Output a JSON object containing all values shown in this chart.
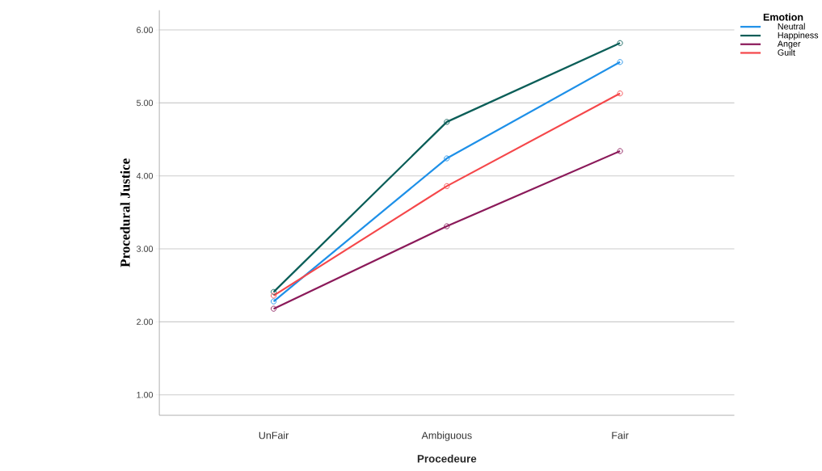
{
  "chart_data": {
    "type": "line",
    "xlabel": "Procedeure",
    "ylabel": "Procedural Justice",
    "legend_title": "Emotion",
    "categories": [
      "UnFair",
      "Ambiguous",
      "Fair"
    ],
    "series": [
      {
        "name": "Neutral",
        "color": "#1e90e8",
        "values": [
          2.28,
          4.24,
          5.56
        ]
      },
      {
        "name": "Happiness",
        "color": "#0b5e58",
        "values": [
          2.41,
          4.74,
          5.82
        ]
      },
      {
        "name": "Anger",
        "color": "#8b1a5a",
        "values": [
          2.18,
          3.31,
          4.34
        ]
      },
      {
        "name": "Guilt",
        "color": "#f5474a",
        "values": [
          2.36,
          3.86,
          5.13
        ]
      }
    ],
    "ylim": [
      0.72,
      6.27
    ],
    "yticks": [
      {
        "value": 1,
        "label": "1.00"
      },
      {
        "value": 2,
        "label": "2.00"
      },
      {
        "value": 3,
        "label": "3.00"
      },
      {
        "value": 4,
        "label": "4.00"
      },
      {
        "value": 5,
        "label": "5.00"
      },
      {
        "value": 6,
        "label": "6.00"
      }
    ],
    "grid": "y",
    "legend": "top right",
    "marker": "circle",
    "line_style": "solid"
  }
}
